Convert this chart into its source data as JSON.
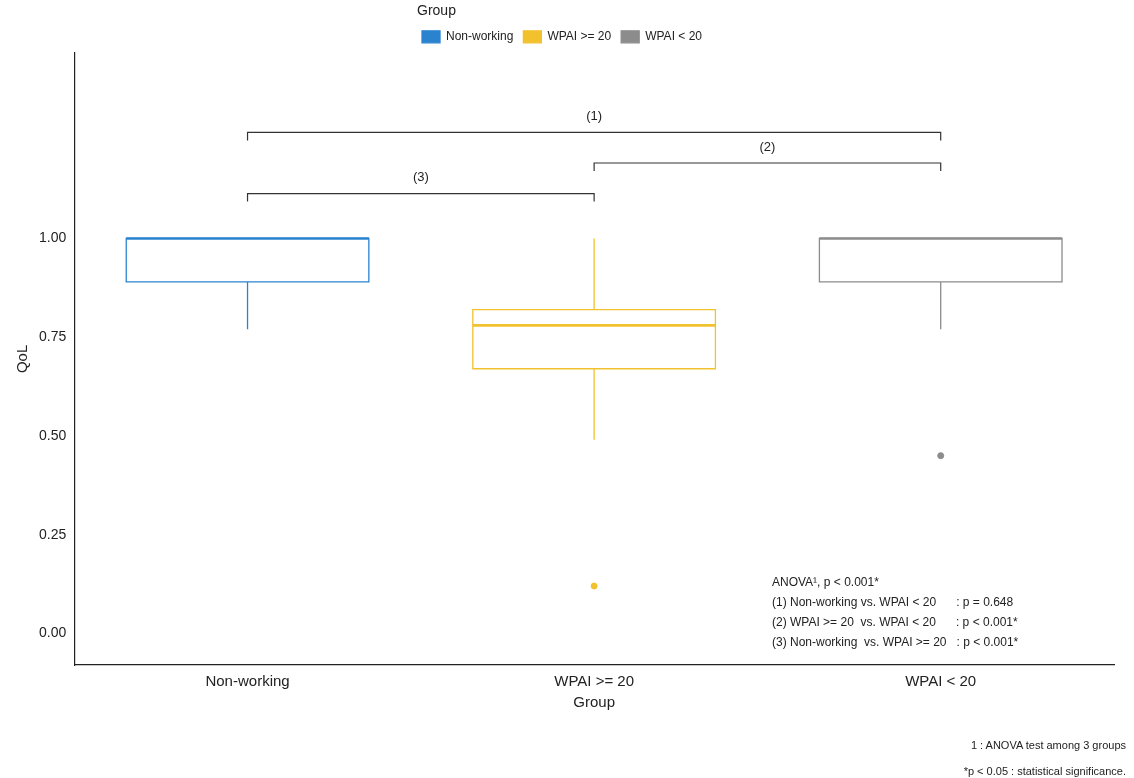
{
  "chart_data": {
    "type": "box",
    "xlabel": "Group",
    "ylabel": "QoL",
    "legend_title": "Group",
    "legend": "top",
    "categories": [
      "Non-working",
      "WPAI >= 20",
      "WPAI < 20"
    ],
    "series": [
      {
        "name": "Non-working",
        "color": "#2b83d0",
        "boxes": [
          {
            "low": 0.77,
            "q1": 0.89,
            "median": 1.0,
            "q3": 1.0,
            "high": 1.0
          },
          null,
          null
        ]
      },
      {
        "name": "WPAI >= 20",
        "color": "#f2c12e",
        "boxes": [
          null,
          {
            "low": 0.49,
            "q1": 0.67,
            "median": 0.78,
            "q3": 0.82,
            "high": 1.0,
            "outliers": [
              0.12
            ]
          },
          null
        ]
      },
      {
        "name": "WPAI < 20",
        "color": "#8c8c8c",
        "boxes": [
          null,
          null,
          {
            "low": 0.77,
            "q1": 0.89,
            "median": 1.0,
            "q3": 1.0,
            "high": 1.0,
            "outliers": [
              0.45
            ]
          }
        ]
      }
    ],
    "ylim": [
      -0.08,
      1.47
    ],
    "yticks": [
      {
        "value": 0,
        "label": "0.00"
      },
      {
        "value": 0.25,
        "label": "0.25"
      },
      {
        "value": 0.5,
        "label": "0.50"
      },
      {
        "value": 0.75,
        "label": "0.75"
      },
      {
        "value": 1,
        "label": "1.00"
      }
    ],
    "grid": false,
    "annotations": [
      "(1)",
      "(2)",
      "(3)",
      "ANOVA¹, p < 0.001*",
      "(1) Non-working vs. WPAI < 20      : p = 0.648",
      "(2) WPAI >= 20  vs. WPAI < 20      : p < 0.001*",
      "(3) Non-working  vs. WPAI >= 20   : p < 0.001*",
      "1 : ANOVA test among 3 groups",
      "*p < 0.05 : statistical significance."
    ]
  }
}
